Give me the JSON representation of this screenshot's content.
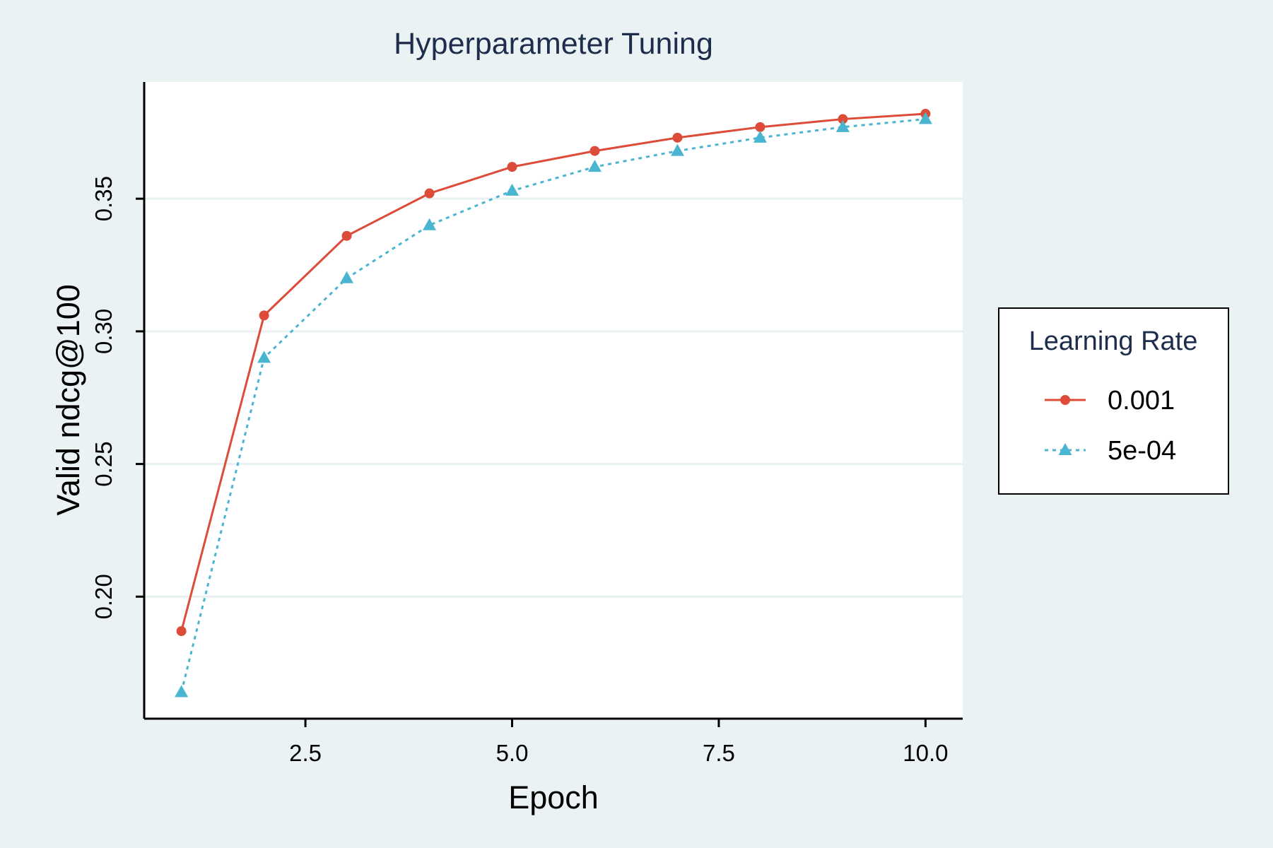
{
  "chart_data": {
    "type": "line",
    "title": "Hyperparameter Tuning",
    "xlabel": "Epoch",
    "ylabel": "Valid ndcg@100",
    "xlim": [
      0.55,
      10.45
    ],
    "ylim": [
      0.154,
      0.394
    ],
    "xticks": [
      2.5,
      5.0,
      7.5,
      10.0
    ],
    "xtick_labels": [
      "2.5",
      "5.0",
      "7.5",
      "10.0"
    ],
    "yticks": [
      0.2,
      0.25,
      0.3,
      0.35
    ],
    "ytick_labels": [
      "0.20",
      "0.25",
      "0.30",
      "0.35"
    ],
    "grid": "horizontal",
    "legend": {
      "title": "Learning Rate",
      "placement": "right"
    },
    "x": [
      1,
      2,
      3,
      4,
      5,
      6,
      7,
      8,
      9,
      10
    ],
    "series": [
      {
        "name": "0.001",
        "color": "#dd4b39",
        "line_style": "solid",
        "marker": "circle",
        "values": [
          0.187,
          0.306,
          0.336,
          0.352,
          0.362,
          0.368,
          0.373,
          0.377,
          0.38,
          0.382
        ]
      },
      {
        "name": "5e-04",
        "color": "#4ab5d1",
        "line_style": "dotted",
        "marker": "triangle",
        "values": [
          0.164,
          0.29,
          0.32,
          0.34,
          0.353,
          0.362,
          0.368,
          0.373,
          0.377,
          0.38
        ]
      }
    ]
  }
}
